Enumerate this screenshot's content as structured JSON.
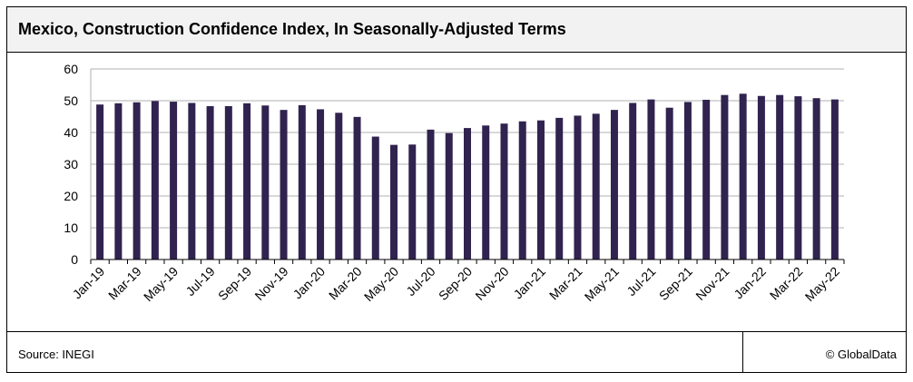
{
  "header": {
    "title": "Mexico, Construction Confidence Index, In Seasonally-Adjusted Terms"
  },
  "footer": {
    "source": "Source: INEGI",
    "credit": "© GlobalData"
  },
  "colors": {
    "bar": "#30234f",
    "grid": "#b0b0b0",
    "axis": "#000000"
  },
  "chart_data": {
    "type": "bar",
    "categories": [
      "Jan-19",
      "Feb-19",
      "Mar-19",
      "Apr-19",
      "May-19",
      "Jun-19",
      "Jul-19",
      "Aug-19",
      "Sep-19",
      "Oct-19",
      "Nov-19",
      "Dec-19",
      "Jan-20",
      "Feb-20",
      "Mar-20",
      "Apr-20",
      "May-20",
      "Jun-20",
      "Jul-20",
      "Aug-20",
      "Sep-20",
      "Oct-20",
      "Nov-20",
      "Dec-20",
      "Jan-21",
      "Feb-21",
      "Mar-21",
      "Apr-21",
      "May-21",
      "Jun-21",
      "Jul-21",
      "Aug-21",
      "Sep-21",
      "Oct-21",
      "Nov-21",
      "Dec-21",
      "Jan-22",
      "Feb-22",
      "Mar-22",
      "Apr-22",
      "May-22"
    ],
    "x_tick_labels": [
      "Jan-19",
      "Mar-19",
      "May-19",
      "Jul-19",
      "Sep-19",
      "Nov-19",
      "Jan-20",
      "Mar-20",
      "May-20",
      "Jul-20",
      "Sep-20",
      "Nov-20",
      "Jan-21",
      "Mar-21",
      "May-21",
      "Jul-21",
      "Sep-21",
      "Nov-21",
      "Jan-22",
      "Mar-22",
      "May-22"
    ],
    "values": [
      48.8,
      49.2,
      49.5,
      49.9,
      49.7,
      49.3,
      48.3,
      48.3,
      49.2,
      48.5,
      47.1,
      48.6,
      47.3,
      46.2,
      44.9,
      38.7,
      36.1,
      36.2,
      40.9,
      39.8,
      41.4,
      42.2,
      42.8,
      43.5,
      43.8,
      44.6,
      45.3,
      45.9,
      47.1,
      49.3,
      50.4,
      47.8,
      49.6,
      50.3,
      51.8,
      52.2,
      51.5,
      51.8,
      51.4,
      50.8,
      50.4
    ],
    "ylim": [
      0,
      60
    ],
    "yticks": [
      0,
      10,
      20,
      30,
      40,
      50,
      60
    ],
    "grid": true,
    "title": "Mexico, Construction Confidence Index, In Seasonally-Adjusted Terms",
    "xlabel": "",
    "ylabel": ""
  }
}
